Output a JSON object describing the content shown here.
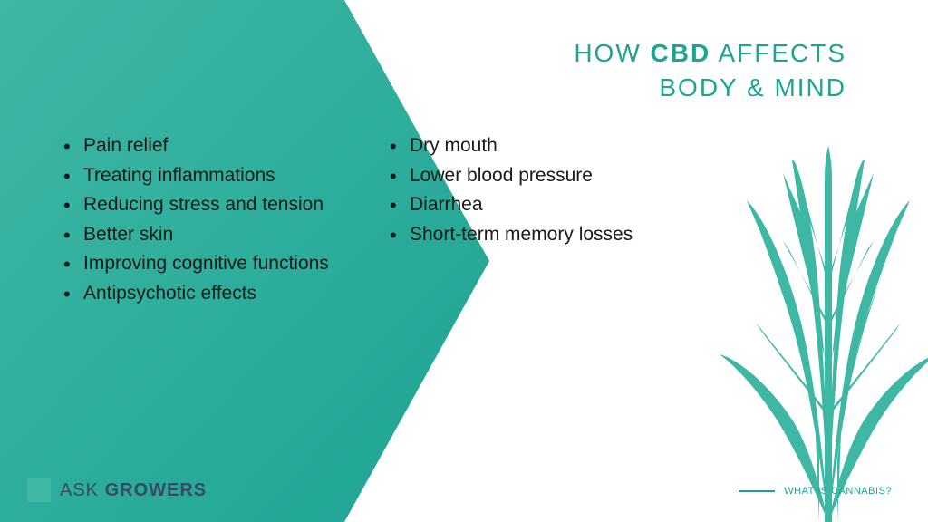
{
  "colors": {
    "teal": "#3eb7a4",
    "teal_dark": "#1ea493",
    "navy": "#3a4a63",
    "text": "#1a1a1a",
    "white": "#ffffff"
  },
  "title": {
    "line1_pre": "HOW ",
    "line1_bold": "CBD",
    "line1_post": " AFFECTS",
    "line2": "BODY & MIND"
  },
  "left_list": [
    "Pain relief",
    "Treating inflammations",
    "Reducing stress and tension",
    "Better skin",
    "Improving cognitive functions",
    "Antipsychotic effects"
  ],
  "right_list": [
    "Dry mouth",
    "Lower blood pressure",
    "Diarrhea",
    "Short-term memory losses"
  ],
  "logo": {
    "word1": "ASK ",
    "word2": "GROWERS"
  },
  "footer": {
    "label": "WHAT IS CANNABIS?"
  }
}
